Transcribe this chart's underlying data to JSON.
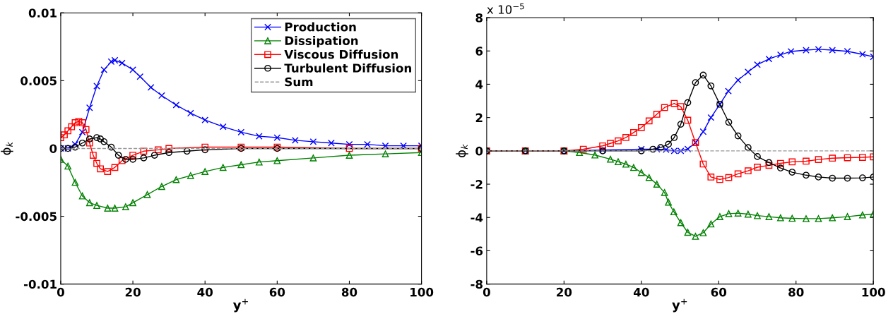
{
  "chart_data": [
    {
      "type": "line",
      "xlabel": "y$^{+}$",
      "ylabel": "ϕ$_{k}$",
      "xlim": [
        0,
        100
      ],
      "ylim": [
        -0.01,
        0.01
      ],
      "xticks": [
        0,
        20,
        40,
        60,
        80,
        100
      ],
      "yticks": [
        -0.01,
        -0.005,
        0,
        0.005,
        0.01
      ],
      "legend": "top right",
      "series": [
        {
          "name": "Production",
          "color": "#0000ff",
          "marker": "cross",
          "line_style": "solid",
          "x": [
            0,
            2,
            4,
            6,
            8,
            10,
            12,
            14,
            15,
            17,
            20,
            22,
            25,
            28,
            32,
            36,
            40,
            45,
            50,
            55,
            60,
            65,
            70,
            75,
            80,
            85,
            90,
            95,
            100
          ],
          "values": [
            0,
            0,
            0.0003,
            0.0012,
            0.003,
            0.0046,
            0.0058,
            0.0064,
            0.0065,
            0.0063,
            0.0058,
            0.0053,
            0.0045,
            0.0039,
            0.0032,
            0.0026,
            0.0021,
            0.0016,
            0.0012,
            0.0009,
            0.0008,
            0.0006,
            0.0005,
            0.0004,
            0.0003,
            0.0003,
            0.0002,
            0.0002,
            0.0002
          ]
        },
        {
          "name": "Dissipation",
          "color": "#008000",
          "marker": "triangle",
          "line_style": "solid",
          "x": [
            0,
            2,
            4,
            6,
            8,
            10,
            13,
            15,
            18,
            20,
            24,
            28,
            32,
            36,
            40,
            45,
            50,
            55,
            60,
            70,
            80,
            90,
            100
          ],
          "values": [
            -0.0008,
            -0.0013,
            -0.0025,
            -0.0035,
            -0.004,
            -0.0042,
            -0.0044,
            -0.0044,
            -0.0043,
            -0.004,
            -0.0034,
            -0.0028,
            -0.0023,
            -0.002,
            -0.0017,
            -0.0014,
            -0.0012,
            -0.001,
            -0.0009,
            -0.0007,
            -0.0005,
            -0.0004,
            -0.0003
          ]
        },
        {
          "name": "Viscous Diffusion",
          "color": "#ff0000",
          "marker": "square",
          "line_style": "solid",
          "x": [
            0,
            1,
            2,
            3,
            4,
            5,
            6,
            7,
            8,
            9,
            10,
            11,
            13,
            15,
            17,
            20,
            23,
            27,
            30,
            40,
            50,
            60,
            80,
            100
          ],
          "values": [
            0.0008,
            0.001,
            0.0013,
            0.0016,
            0.0019,
            0.002,
            0.0019,
            0.0014,
            0.0004,
            -0.0005,
            -0.0011,
            -0.0015,
            -0.0017,
            -0.0014,
            -0.0009,
            -0.0005,
            -0.0002,
            -0.0001,
            0,
            0.0001,
            0.0001,
            0.0001,
            0,
            0
          ]
        },
        {
          "name": "Turbulent Diffusion",
          "color": "#000000",
          "marker": "circle",
          "line_style": "solid",
          "x": [
            0,
            2,
            4,
            6,
            8,
            10,
            11,
            12,
            14,
            16,
            18,
            20,
            23,
            26,
            30,
            35,
            40,
            50,
            60,
            100
          ],
          "values": [
            0,
            0,
            0.0001,
            0.0004,
            0.0007,
            0.0008,
            0.0007,
            0.0005,
            0.0001,
            -0.0005,
            -0.0008,
            -0.0008,
            -0.0007,
            -0.0005,
            -0.0003,
            -0.0002,
            -0.0001,
            0,
            0,
            0
          ]
        },
        {
          "name": "Sum",
          "color": "#999999",
          "marker": "none",
          "line_style": "dashed",
          "x": [
            0,
            100
          ],
          "values": [
            0,
            0
          ]
        }
      ]
    },
    {
      "type": "line",
      "xlabel": "y$^{+}$",
      "ylabel": "ϕ$_{k}$",
      "xlim": [
        0,
        100
      ],
      "ylim": [
        -8,
        8
      ],
      "xticks": [
        0,
        20,
        40,
        60,
        80,
        100
      ],
      "yticks": [
        -8,
        -6,
        -4,
        -2,
        0,
        2,
        4,
        6,
        8
      ],
      "annotations": [
        "x 10$^{−5}$"
      ],
      "series": [
        {
          "color": "#0000ff",
          "marker": "cross",
          "line_style": "solid",
          "x": [
            0,
            10,
            20,
            30,
            40,
            44,
            46.4,
            48.5,
            50.2,
            52,
            54,
            56,
            58,
            60.3,
            62.5,
            65,
            67.6,
            70,
            73,
            76,
            78.7,
            82.6,
            85.8,
            89.4,
            93.3,
            97.2,
            100
          ],
          "values": [
            0,
            0,
            0,
            0.05,
            0.1,
            0.1,
            0.07,
            0,
            0,
            0.11,
            0.49,
            1.15,
            2,
            2.79,
            3.59,
            4.25,
            4.74,
            5.18,
            5.52,
            5.77,
            5.97,
            6.05,
            6.1,
            6.05,
            5.98,
            5.8,
            5.65
          ]
        },
        {
          "color": "#008000",
          "marker": "triangle",
          "line_style": "solid",
          "x": [
            0,
            10,
            20,
            24,
            28,
            32,
            34,
            36,
            38,
            40,
            42,
            44,
            46,
            47,
            48.4,
            50.2,
            52,
            54,
            56,
            58,
            60.3,
            62.6,
            65,
            67.6,
            70,
            73,
            76,
            79,
            82.6,
            85.8,
            89.4,
            93.3,
            97.2,
            100
          ],
          "values": [
            0,
            0,
            0,
            -0.1,
            -0.25,
            -0.5,
            -0.65,
            -0.8,
            -1,
            -1.3,
            -1.6,
            -2,
            -2.5,
            -3.08,
            -3.66,
            -4.31,
            -4.89,
            -5.13,
            -4.92,
            -4.39,
            -3.95,
            -3.77,
            -3.74,
            -3.8,
            -3.89,
            -3.95,
            -4.02,
            -4.05,
            -4.07,
            -4.07,
            -4.02,
            -3.95,
            -3.85,
            -3.79
          ]
        },
        {
          "color": "#ff0000",
          "marker": "square",
          "line_style": "solid",
          "x": [
            0,
            10,
            20,
            25,
            30,
            32,
            34,
            36,
            38,
            40,
            42,
            44,
            46,
            48.5,
            50.2,
            52,
            54,
            56,
            58,
            60.3,
            62.6,
            65,
            67.6,
            70,
            73,
            76,
            79,
            82.6,
            85.8,
            89.4,
            93.3,
            97.2,
            100
          ],
          "values": [
            0,
            0,
            0,
            0.1,
            0.3,
            0.45,
            0.6,
            0.8,
            1.1,
            1.4,
            1.8,
            2.2,
            2.6,
            2.85,
            2.66,
            1.84,
            0.5,
            -0.79,
            -1.57,
            -1.72,
            -1.6,
            -1.38,
            -1.2,
            -0.98,
            -0.87,
            -0.75,
            -0.66,
            -0.62,
            -0.52,
            -0.44,
            -0.41,
            -0.39,
            -0.36
          ]
        },
        {
          "color": "#000000",
          "marker": "circle",
          "line_style": "solid",
          "x": [
            0,
            10,
            20,
            30,
            40,
            43,
            45,
            47,
            48.5,
            50.2,
            52,
            54,
            56,
            58,
            60.3,
            62.6,
            65,
            67.6,
            70,
            73,
            76,
            79,
            82.6,
            85.8,
            89.4,
            93.3,
            97.2,
            100
          ],
          "values": [
            0,
            0,
            0,
            0,
            0,
            0.1,
            0.2,
            0.4,
            0.8,
            1.6,
            2.9,
            4.1,
            4.55,
            3.9,
            2.8,
            1.72,
            0.9,
            0.2,
            -0.34,
            -0.7,
            -1.03,
            -1.28,
            -1.46,
            -1.57,
            -1.64,
            -1.64,
            -1.62,
            -1.57
          ]
        },
        {
          "color": "#999999",
          "marker": "none",
          "line_style": "dashed",
          "x": [
            0,
            100
          ],
          "values": [
            0,
            0
          ]
        }
      ]
    }
  ]
}
